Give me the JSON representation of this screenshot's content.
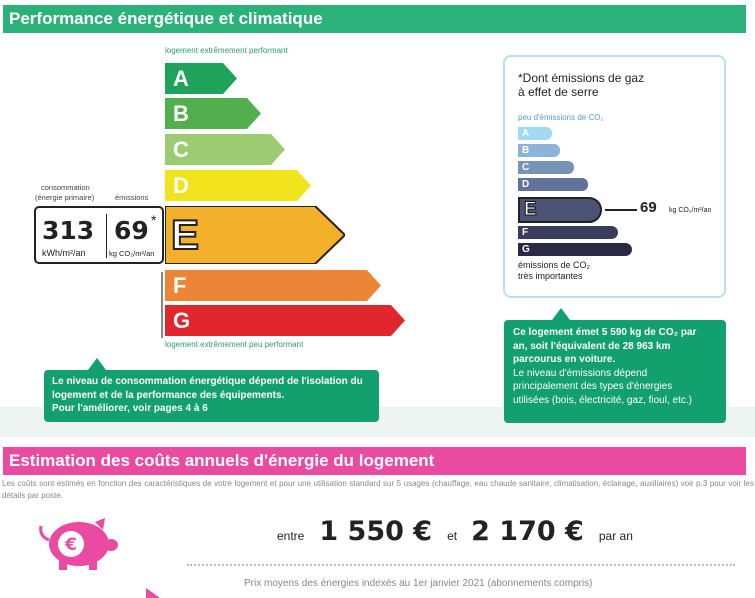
{
  "dpe": {
    "header": "Performance énergétique et climatique",
    "top_label": "logement extrêmement performant",
    "bottom_label": "logement extrêmement peu performant",
    "classes": [
      {
        "letter": "A",
        "color": "#1fa35a"
      },
      {
        "letter": "B",
        "color": "#51b04d"
      },
      {
        "letter": "C",
        "color": "#9ccb72"
      },
      {
        "letter": "D",
        "color": "#f1e41c"
      },
      {
        "letter": "E",
        "color": "#f3b02b"
      },
      {
        "letter": "F",
        "color": "#ec8636"
      },
      {
        "letter": "G",
        "color": "#e1262d"
      }
    ],
    "current_class": "E",
    "consumption_label": "consommation",
    "consumption_sub": "(énergie primaire)",
    "emissions_label": "émissions",
    "consumption_value": "313",
    "consumption_unit": "kWh/m²/an",
    "emissions_value": "69",
    "emissions_star": "*",
    "emissions_unit": "kg CO₂/m²/an",
    "callout_left": [
      "Le niveau de consommation énergétique dépend de l'isolation du",
      "logement et de la performance des équipements.",
      "Pour l'améliorer, voir pages 4 à 6"
    ]
  },
  "ges": {
    "title_line1": "*Dont émissions de gaz",
    "title_line2": "à effet de serre",
    "top_label": "peu d'émissions de CO₂",
    "bottom_label_1": "émissions de CO₂",
    "bottom_label_2": "très importantes",
    "classes": [
      {
        "letter": "A",
        "color": "#a2d8f2"
      },
      {
        "letter": "B",
        "color": "#8cb3d9"
      },
      {
        "letter": "C",
        "color": "#7893b8"
      },
      {
        "letter": "D",
        "color": "#627399"
      },
      {
        "letter": "E",
        "color": "#4b5374"
      },
      {
        "letter": "F",
        "color": "#3a3c5c"
      },
      {
        "letter": "G",
        "color": "#2a2a44"
      }
    ],
    "current_class": "E",
    "value": "69",
    "unit": "kg CO₂/m²/an",
    "callout": [
      "Ce logement émet 5 590 kg de CO₂ par",
      "an, soit l'équivalent de 28 963 km",
      "parcourus en voiture.",
      "Le niveau d'émissions dépend",
      "principalement des types d'énergies",
      "utilisées (bois, électricité, gaz, fioul, etc.)"
    ]
  },
  "costs": {
    "header": "Estimation des coûts annuels d'énergie du logement",
    "note": "Les coûts sont estimés en fonction des caractéristiques de votre logement et pour une utilisation standard sur 5 usages (chauffage, eau chaude sanitaire, climatisation, éclairage, auxiliaires) voir p.3 pour voir les détails par poste.",
    "entre": "entre",
    "low": "1 550 €",
    "et": "et",
    "high": "2 170 €",
    "par_an": "par an",
    "prices_note": "Prix moyens des énergies indexés au  1er janvier 2021 (abonnements compris)",
    "piggy_symbol": "€"
  },
  "colors": {
    "green": "#2bb27b",
    "pink": "#ea4aa0",
    "callout": "#12a06e"
  }
}
